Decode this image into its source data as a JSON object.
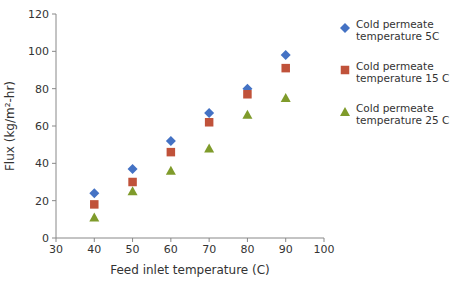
{
  "chart_data": {
    "type": "scatter",
    "x": [
      40,
      50,
      60,
      70,
      80,
      90
    ],
    "series": [
      {
        "name": "Cold permeate\ntemperature 5C",
        "values": [
          24,
          37,
          52,
          67,
          80,
          98
        ],
        "color": "#4472C4",
        "marker": "diamond"
      },
      {
        "name": "Cold permeate\ntemperature 15 C",
        "values": [
          18,
          30,
          46,
          62,
          77,
          91
        ],
        "color": "#C0523A",
        "marker": "square"
      },
      {
        "name": "Cold permeate\ntemperature 25 C",
        "values": [
          11,
          25,
          36,
          48,
          66,
          75
        ],
        "color": "#7F9B2B",
        "marker": "triangle"
      }
    ],
    "xlabel": "Feed inlet temperature (C)",
    "ylabel": "Flux (kg/m²-hr)",
    "xlim": [
      30,
      100
    ],
    "ylim": [
      0,
      120
    ],
    "xticks": [
      30,
      40,
      50,
      60,
      70,
      80,
      90,
      100
    ],
    "yticks": [
      0,
      20,
      40,
      60,
      80,
      100,
      120
    ],
    "grid": false
  }
}
